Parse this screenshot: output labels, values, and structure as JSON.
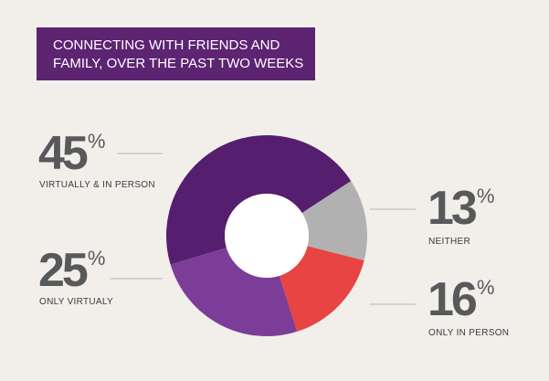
{
  "chart_data": {
    "type": "donut",
    "title": [
      "CONNECTING WITH FRIENDS AND",
      "FAMILY, OVER THE PAST TWO WEEKS"
    ],
    "categories": [
      "NEITHER",
      "ONLY IN PERSON",
      "ONLY VIRTUALY",
      "VIRTUALLY & IN PERSON"
    ],
    "values": [
      13,
      16,
      25,
      45
    ],
    "unit": "%",
    "colors": [
      "#b1b1b1",
      "#e84444",
      "#7b3d97",
      "#561e6e"
    ],
    "title_color": "#5d2472"
  }
}
